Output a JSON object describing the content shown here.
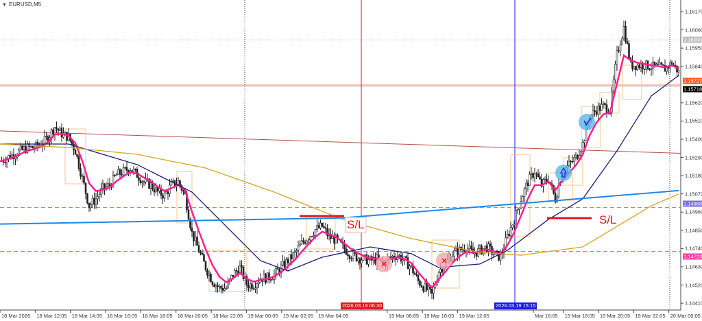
{
  "symbol_label": "EURUSD,M5",
  "chart_data": {
    "type": "candlestick",
    "symbol": "EURUSD",
    "timeframe": "M5",
    "ylim": [
      1.1438,
      1.1625
    ],
    "y_tick_labels": [
      "1.16170",
      "1.16060",
      "1.15950",
      "1.15840",
      "1.15620",
      "1.15510",
      "1.15400",
      "1.15290",
      "1.15180",
      "1.15070",
      "1.14960",
      "1.14850",
      "1.14740",
      "1.14630",
      "1.14520",
      "1.14410"
    ],
    "x_tick_labels": [
      "18 Mar 2026",
      "18 Mar 12:05",
      "18 Mar 14:05",
      "18 Mar 16:05",
      "18 Mar 18:05",
      "18 Mar 20:05",
      "18 Mar 22:05",
      "19 Mar 00:05",
      "19 Mar 02:05",
      "19 Mar 04:05",
      "19 Mar 08:05",
      "19 Mar 10:05",
      "19 Mar 12:05",
      "Mar 16:05",
      "19 Mar 18:05",
      "19 Mar 20:05",
      "19 Mar 22:05",
      "20 Mar 00:05"
    ],
    "close_samples": [
      1.15267,
      1.15288,
      1.15309,
      1.1533,
      1.1535,
      1.1535,
      1.15371,
      1.15412,
      1.15475,
      1.15433,
      1.15412,
      1.1533,
      1.15164,
      1.14998,
      1.1504,
      1.15102,
      1.15123,
      1.15185,
      1.15205,
      1.15226,
      1.15185,
      1.15143,
      1.15123,
      1.15081,
      1.15061,
      1.15123,
      1.15143,
      1.15061,
      1.14833,
      1.14729,
      1.14626,
      1.14543,
      1.14502,
      1.14502,
      1.14584,
      1.14626,
      1.14522,
      1.14522,
      1.14564,
      1.14564,
      1.14584,
      1.14626,
      1.14667,
      1.14709,
      1.14771,
      1.14812,
      1.14854,
      1.14874,
      1.14812,
      1.14791,
      1.1475,
      1.14709,
      1.14688,
      1.14676,
      1.14667,
      1.14676,
      1.14647,
      1.14688,
      1.147,
      1.14667,
      1.14626,
      1.14543,
      1.14502,
      1.1446,
      1.14605,
      1.14647,
      1.14709,
      1.14729,
      1.1475,
      1.14709,
      1.14729,
      1.1475,
      1.14709,
      1.14688,
      1.14812,
      1.14916,
      1.1504,
      1.15143,
      1.15205,
      1.15123,
      1.15164,
      1.1504,
      1.15205,
      1.15247,
      1.15288,
      1.15371,
      1.15537,
      1.15578,
      1.15599,
      1.15578,
      1.15909,
      1.16075,
      1.15847,
      1.15847,
      1.15847,
      1.15839,
      1.15835,
      1.15826,
      1.1586,
      1.15806
    ],
    "indicators": [
      {
        "kind": "ema-fast",
        "color": "#ff1f8f",
        "period": 3
      },
      {
        "kind": "ma-mid",
        "color": "#1c1c6e",
        "anchor_index": [
          0,
          10,
          20,
          28,
          33,
          38,
          42,
          47,
          54,
          60,
          64,
          70,
          74,
          80,
          85,
          90,
          95,
          99
        ],
        "anchor_price": [
          1.15371,
          1.15371,
          1.15247,
          1.15081,
          1.14874,
          1.14667,
          1.14605,
          1.14688,
          1.1475,
          1.14709,
          1.14626,
          1.14647,
          1.14729,
          1.14916,
          1.1504,
          1.1533,
          1.15661,
          1.15785
        ]
      },
      {
        "kind": "ma-slow",
        "color": "#d9a21b",
        "anchor_index": [
          0,
          10,
          20,
          30,
          40,
          50,
          60,
          70,
          76,
          85,
          95,
          99
        ],
        "anchor_price": [
          1.15371,
          1.1535,
          1.15309,
          1.15226,
          1.15081,
          1.14916,
          1.148,
          1.14717,
          1.147,
          1.1475,
          1.14998,
          1.15069
        ]
      },
      {
        "kind": "ma-long",
        "color": "#1e88e5",
        "anchor_index": [
          0,
          50,
          99
        ],
        "anchor_price": [
          1.14888,
          1.14925,
          1.1509
        ]
      }
    ],
    "trend_line": {
      "color": "#b5504a",
      "from": 1.1545,
      "to": 1.15315
    },
    "horizontal_levels": [
      {
        "price": 1.16,
        "label": "1.16000",
        "color": "#b8b8b8",
        "style": "dotted"
      },
      {
        "price": 1.15727,
        "label": "1.15727",
        "color": "#ff5a1f",
        "style": "solid"
      },
      {
        "price": 1.15718,
        "label": "1.15718",
        "color": "#000000",
        "style": "solid"
      },
      {
        "price": 1.14988,
        "label": "1.14988",
        "color": "#7b6fe0",
        "style": "dashed"
      },
      {
        "price": 1.14723,
        "label": "1.14723",
        "color": "#ff3aa8",
        "style": "dashed"
      }
    ],
    "vertical_markers": [
      {
        "label": "2026.03.19 06:30",
        "color": "#e3161b"
      },
      {
        "label": "2026.03.19 15:15",
        "color": "#1a1ae6"
      }
    ],
    "stop_loss_labels": [
      "S/L",
      "S/L"
    ],
    "signals": [
      {
        "type": "buy-arrow",
        "color": "#5bb8e8"
      },
      {
        "type": "check",
        "color": "#5bb8e8"
      },
      {
        "type": "exit-x",
        "color": "#f4a6ae"
      },
      {
        "type": "exit-x",
        "color": "#f4a6ae"
      }
    ],
    "grid": false
  }
}
